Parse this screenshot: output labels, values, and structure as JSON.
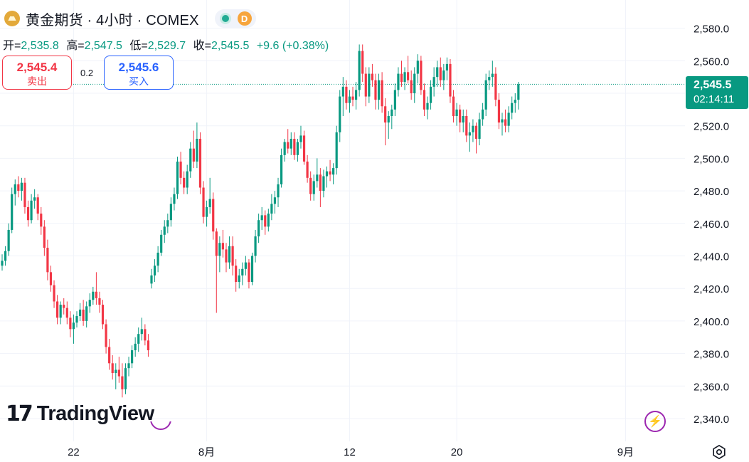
{
  "header": {
    "symbol_title": "黄金期货 · 4小时 · COMEX",
    "delay_badge": "D",
    "icons": {
      "symbol_logo": "gold-bars-icon",
      "market_status": "market-open-dot-icon"
    }
  },
  "ohlc": {
    "open_label": "开=",
    "open_value": "2,535.8",
    "high_label": "高=",
    "high_value": "2,547.5",
    "low_label": "低=",
    "low_value": "2,529.7",
    "close_label": "收=",
    "close_value": "2,545.5",
    "change": "+9.6 (+0.38%)"
  },
  "trade": {
    "sell_price": "2,545.4",
    "sell_label": "卖出",
    "spread": "0.2",
    "buy_price": "2,545.6",
    "buy_label": "买入"
  },
  "price_tag": {
    "value": "2,545.5",
    "countdown": "02:14:11"
  },
  "branding": {
    "logo_mark": "17",
    "logo_text": "TradingView"
  },
  "colors": {
    "up": "#089981",
    "down": "#f23645",
    "grid": "#f0f3fa",
    "last_price_line": "#089981"
  },
  "chart_data": {
    "type": "candlestick",
    "title": "黄金期货 · 4小时 · COMEX",
    "ylim": [
      2328,
      2592
    ],
    "y_ticks": [
      2340,
      2360,
      2380,
      2400,
      2420,
      2440,
      2460,
      2480,
      2500,
      2520,
      2540,
      2560,
      2580
    ],
    "y_tick_labels": [
      "2,340.0",
      "2,360.0",
      "2,380.0",
      "2,400.0",
      "2,420.0",
      "2,440.0",
      "2,460.0",
      "2,480.0",
      "2,500.0",
      "2,520.0",
      "2,540.0",
      "2,560.0",
      "2,580.0"
    ],
    "x_ticks": [
      {
        "label": "22",
        "bar": 22
      },
      {
        "label": "8月",
        "bar": 63
      },
      {
        "label": "12",
        "bar": 107
      },
      {
        "label": "20",
        "bar": 140
      },
      {
        "label": "9月",
        "bar": 192
      }
    ],
    "last_price": 2545.5,
    "grid": true,
    "ohlc": [
      [
        2434,
        2441,
        2431,
        2437
      ],
      [
        2437,
        2446,
        2434,
        2443
      ],
      [
        2443,
        2460,
        2440,
        2456
      ],
      [
        2456,
        2482,
        2454,
        2478
      ],
      [
        2478,
        2487,
        2471,
        2484
      ],
      [
        2484,
        2489,
        2476,
        2480
      ],
      [
        2480,
        2488,
        2474,
        2485
      ],
      [
        2485,
        2488,
        2466,
        2470
      ],
      [
        2470,
        2474,
        2458,
        2462
      ],
      [
        2462,
        2478,
        2460,
        2474
      ],
      [
        2474,
        2481,
        2469,
        2476
      ],
      [
        2476,
        2478,
        2462,
        2466
      ],
      [
        2466,
        2470,
        2453,
        2458
      ],
      [
        2458,
        2462,
        2440,
        2445
      ],
      [
        2445,
        2450,
        2425,
        2430
      ],
      [
        2430,
        2434,
        2418,
        2422
      ],
      [
        2422,
        2425,
        2408,
        2412
      ],
      [
        2412,
        2416,
        2398,
        2402
      ],
      [
        2402,
        2412,
        2398,
        2410
      ],
      [
        2410,
        2414,
        2404,
        2408
      ],
      [
        2408,
        2412,
        2398,
        2402
      ],
      [
        2402,
        2406,
        2390,
        2395
      ],
      [
        2395,
        2404,
        2386,
        2399
      ],
      [
        2399,
        2406,
        2396,
        2403
      ],
      [
        2403,
        2411,
        2400,
        2407
      ],
      [
        2407,
        2413,
        2397,
        2400
      ],
      [
        2400,
        2412,
        2396,
        2409
      ],
      [
        2409,
        2417,
        2405,
        2413
      ],
      [
        2413,
        2421,
        2410,
        2418
      ],
      [
        2418,
        2430,
        2410,
        2414
      ],
      [
        2414,
        2418,
        2405,
        2410
      ],
      [
        2410,
        2413,
        2395,
        2398
      ],
      [
        2398,
        2401,
        2380,
        2384
      ],
      [
        2384,
        2389,
        2370,
        2374
      ],
      [
        2374,
        2379,
        2364,
        2368
      ],
      [
        2368,
        2374,
        2358,
        2370
      ],
      [
        2370,
        2378,
        2362,
        2366
      ],
      [
        2366,
        2374,
        2353,
        2358
      ],
      [
        2358,
        2374,
        2355,
        2371
      ],
      [
        2371,
        2378,
        2366,
        2374
      ],
      [
        2374,
        2385,
        2371,
        2382
      ],
      [
        2382,
        2390,
        2378,
        2386
      ],
      [
        2386,
        2396,
        2381,
        2392
      ],
      [
        2392,
        2402,
        2388,
        2395
      ],
      [
        2395,
        2398,
        2385,
        2388
      ],
      [
        2388,
        2392,
        2378,
        2382
      ],
      [
        2423,
        2432,
        2420,
        2428
      ],
      [
        2428,
        2438,
        2424,
        2434
      ],
      [
        2434,
        2446,
        2430,
        2442
      ],
      [
        2442,
        2456,
        2440,
        2453
      ],
      [
        2453,
        2462,
        2448,
        2458
      ],
      [
        2458,
        2466,
        2454,
        2462
      ],
      [
        2462,
        2476,
        2458,
        2472
      ],
      [
        2472,
        2482,
        2468,
        2478
      ],
      [
        2478,
        2501,
        2475,
        2498
      ],
      [
        2498,
        2504,
        2484,
        2488
      ],
      [
        2488,
        2492,
        2478,
        2482
      ],
      [
        2482,
        2496,
        2478,
        2492
      ],
      [
        2492,
        2510,
        2488,
        2506
      ],
      [
        2506,
        2517,
        2494,
        2498
      ],
      [
        2498,
        2522,
        2494,
        2512
      ],
      [
        2512,
        2516,
        2478,
        2482
      ],
      [
        2482,
        2486,
        2460,
        2464
      ],
      [
        2464,
        2474,
        2458,
        2470
      ],
      [
        2470,
        2488,
        2466,
        2475
      ],
      [
        2475,
        2479,
        2450,
        2455
      ],
      [
        2455,
        2457,
        2405,
        2440
      ],
      [
        2440,
        2452,
        2430,
        2448
      ],
      [
        2448,
        2456,
        2439,
        2444
      ],
      [
        2444,
        2448,
        2430,
        2436
      ],
      [
        2436,
        2452,
        2432,
        2446
      ],
      [
        2446,
        2452,
        2428,
        2434
      ],
      [
        2434,
        2438,
        2418,
        2424
      ],
      [
        2424,
        2432,
        2420,
        2428
      ],
      [
        2428,
        2436,
        2422,
        2432
      ],
      [
        2432,
        2440,
        2428,
        2436
      ],
      [
        2436,
        2438,
        2420,
        2424
      ],
      [
        2424,
        2442,
        2422,
        2440
      ],
      [
        2440,
        2456,
        2436,
        2452
      ],
      [
        2452,
        2466,
        2448,
        2462
      ],
      [
        2462,
        2470,
        2456,
        2465
      ],
      [
        2465,
        2468,
        2453,
        2458
      ],
      [
        2458,
        2469,
        2455,
        2466
      ],
      [
        2466,
        2478,
        2462,
        2472
      ],
      [
        2472,
        2480,
        2466,
        2476
      ],
      [
        2476,
        2488,
        2470,
        2484
      ],
      [
        2484,
        2506,
        2482,
        2502
      ],
      [
        2502,
        2512,
        2498,
        2510
      ],
      [
        2510,
        2518,
        2503,
        2506
      ],
      [
        2506,
        2516,
        2502,
        2512
      ],
      [
        2512,
        2516,
        2499,
        2502
      ],
      [
        2502,
        2512,
        2498,
        2510
      ],
      [
        2510,
        2520,
        2506,
        2514
      ],
      [
        2514,
        2517,
        2496,
        2498
      ],
      [
        2498,
        2502,
        2485,
        2488
      ],
      [
        2488,
        2492,
        2474,
        2478
      ],
      [
        2478,
        2490,
        2474,
        2486
      ],
      [
        2486,
        2500,
        2482,
        2490
      ],
      [
        2490,
        2494,
        2470,
        2480
      ],
      [
        2480,
        2493,
        2476,
        2489
      ],
      [
        2489,
        2495,
        2482,
        2492
      ],
      [
        2492,
        2499,
        2486,
        2490
      ],
      [
        2490,
        2497,
        2484,
        2494
      ],
      [
        2494,
        2520,
        2490,
        2516
      ],
      [
        2516,
        2542,
        2510,
        2538
      ],
      [
        2538,
        2550,
        2526,
        2544
      ],
      [
        2544,
        2548,
        2530,
        2534
      ],
      [
        2534,
        2542,
        2528,
        2538
      ],
      [
        2538,
        2544,
        2532,
        2536
      ],
      [
        2536,
        2547,
        2530,
        2542
      ],
      [
        2542,
        2570,
        2538,
        2566
      ],
      [
        2566,
        2570,
        2547,
        2552
      ],
      [
        2552,
        2556,
        2532,
        2538
      ],
      [
        2538,
        2556,
        2534,
        2552
      ],
      [
        2552,
        2558,
        2544,
        2548
      ],
      [
        2548,
        2552,
        2530,
        2536
      ],
      [
        2536,
        2552,
        2530,
        2548
      ],
      [
        2548,
        2553,
        2528,
        2532
      ],
      [
        2532,
        2537,
        2508,
        2522
      ],
      [
        2522,
        2529,
        2512,
        2526
      ],
      [
        2526,
        2533,
        2518,
        2530
      ],
      [
        2530,
        2546,
        2526,
        2542
      ],
      [
        2542,
        2556,
        2538,
        2552
      ],
      [
        2552,
        2560,
        2544,
        2547
      ],
      [
        2547,
        2556,
        2542,
        2553
      ],
      [
        2553,
        2563,
        2546,
        2548
      ],
      [
        2548,
        2554,
        2536,
        2540
      ],
      [
        2540,
        2556,
        2534,
        2552
      ],
      [
        2552,
        2564,
        2546,
        2560
      ],
      [
        2560,
        2563,
        2539,
        2542
      ],
      [
        2542,
        2546,
        2526,
        2530
      ],
      [
        2530,
        2538,
        2524,
        2534
      ],
      [
        2534,
        2548,
        2530,
        2544
      ],
      [
        2544,
        2556,
        2538,
        2550
      ],
      [
        2550,
        2560,
        2544,
        2556
      ],
      [
        2556,
        2562,
        2544,
        2548
      ],
      [
        2548,
        2558,
        2542,
        2554
      ],
      [
        2554,
        2562,
        2548,
        2558
      ],
      [
        2558,
        2561,
        2534,
        2538
      ],
      [
        2538,
        2542,
        2522,
        2526
      ],
      [
        2526,
        2534,
        2520,
        2530
      ],
      [
        2530,
        2533,
        2516,
        2522
      ],
      [
        2522,
        2530,
        2516,
        2526
      ],
      [
        2526,
        2530,
        2510,
        2514
      ],
      [
        2514,
        2522,
        2504,
        2516
      ],
      [
        2516,
        2524,
        2510,
        2520
      ],
      [
        2520,
        2522,
        2503,
        2512
      ],
      [
        2512,
        2528,
        2508,
        2524
      ],
      [
        2524,
        2534,
        2520,
        2530
      ],
      [
        2530,
        2552,
        2526,
        2548
      ],
      [
        2548,
        2554,
        2542,
        2550
      ],
      [
        2550,
        2560,
        2544,
        2552
      ],
      [
        2552,
        2556,
        2532,
        2536
      ],
      [
        2536,
        2540,
        2518,
        2522
      ],
      [
        2522,
        2528,
        2514,
        2524
      ],
      [
        2524,
        2530,
        2516,
        2520
      ],
      [
        2520,
        2532,
        2516,
        2528
      ],
      [
        2528,
        2538,
        2524,
        2534
      ],
      [
        2534,
        2540,
        2528,
        2536
      ],
      [
        2536,
        2547,
        2530,
        2545.5
      ]
    ]
  }
}
